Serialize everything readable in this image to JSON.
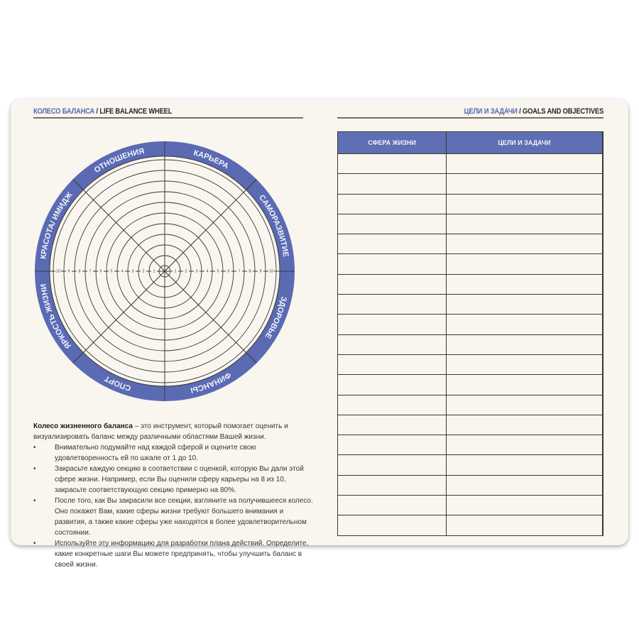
{
  "left_page": {
    "header_ru": "КОЛЕСО БАЛАНСА",
    "header_sep": " / ",
    "header_en": "LIFE BALANCE WHEEL",
    "wheel": {
      "accent_color": "#5a6ab3",
      "sectors": [
        "КАРЬЕРА",
        "САМОРАЗВИТИЕ",
        "ЗДОРОВЬЕ",
        "ФИНАНСЫ",
        "СПОРТ",
        "ЯРКОСТЬ ЖИЗНИ",
        "КРАСОТА/ ИМИДЖ",
        "ОТНОШЕНИЯ"
      ],
      "scale": [
        "1",
        "2",
        "3",
        "4",
        "5",
        "6",
        "7",
        "8",
        "9",
        "10"
      ]
    },
    "description": {
      "intro_bold": "Колесо жизненного баланса",
      "intro_rest": " – это инструмент, который помогает оценить и визуализировать баланс между различными областями Вашей жизни.",
      "bullets": [
        "Внимательно подумайте над каждой сферой и оцените свою удовлетворенность ей по шкале от 1 до 10.",
        "Закрасьте каждую секцию в соответствии с оценкой, которую Вы дали этой сфере жизни. Например, если Вы оценили сферу карьеры на 8 из 10, закрасьте соответствующую секцию примерно на 80%.",
        "После того, как Вы закрасили все секции, взгляните на получившееся колесо. Оно покажет Вам, какие сферы жизни требуют большего внимания и развития, а также какие сферы уже находятся в более удовлетворительном состоянии.",
        "Используйте эту информацию для разработки плана действий. Определите, какие конкретные шаги Вы можете предпринять, чтобы улучшить баланс в своей жизни."
      ]
    }
  },
  "right_page": {
    "header_ru": "ЦЕЛИ И ЗАДАЧИ",
    "header_sep": " / ",
    "header_en": "GOALS AND OBJECTIVES",
    "table": {
      "columns": [
        "СФЕРА ЖИЗНИ",
        "ЦЕЛИ И ЗАДАЧИ"
      ],
      "empty_rows": 19
    }
  }
}
